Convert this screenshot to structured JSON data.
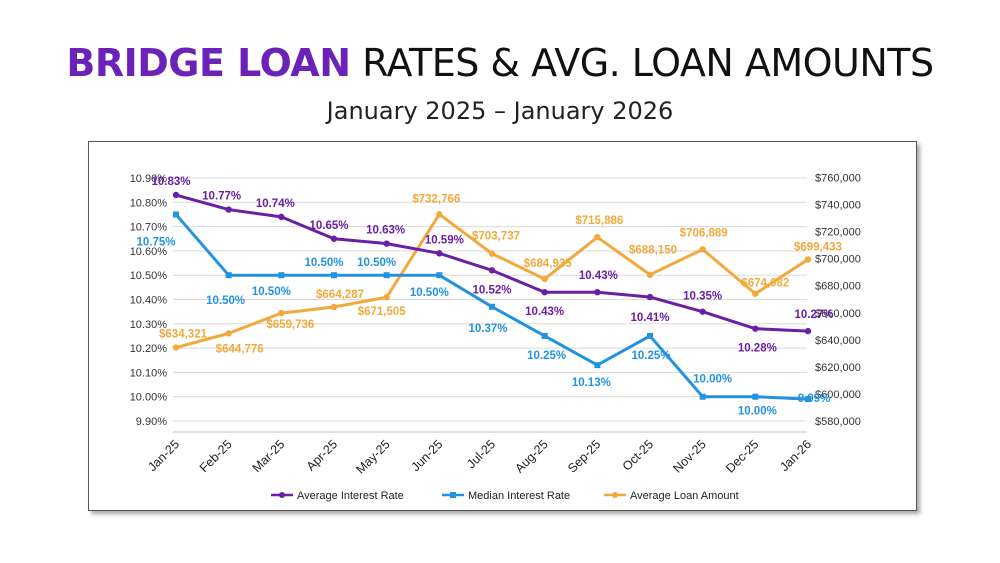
{
  "header": {
    "title_highlight": "BRIDGE LOAN",
    "title_rest": "RATES & AVG. LOAN AMOUNTS",
    "subtitle": "January 2025 – January 2026"
  },
  "colors": {
    "title_highlight": "#6a22b8",
    "average_rate": "#6a1fa6",
    "median_rate": "#2293e0",
    "loan_amount": "#f2a93b",
    "grid": "#d9d9d9"
  },
  "chart_data": {
    "type": "line",
    "categories": [
      "Jan-25",
      "Feb-25",
      "Mar-25",
      "Apr-25",
      "May-25",
      "Jun-25",
      "Jul-25",
      "Aug-25",
      "Sep-25",
      "Oct-25",
      "Nov-25",
      "Dec-25",
      "Jan-26"
    ],
    "grid": true,
    "legend_position": "bottom",
    "y_left": {
      "range": [
        9.9,
        10.9
      ],
      "ticks": [
        "10.90%",
        "10.80%",
        "10.70%",
        "10.60%",
        "10.50%",
        "10.40%",
        "10.30%",
        "10.20%",
        "10.10%",
        "10.00%",
        "9.90%"
      ]
    },
    "y_right": {
      "range": [
        580000,
        760000
      ],
      "ticks": [
        "$760,000",
        "$740,000",
        "$720,000",
        "$700,000",
        "$680,000",
        "$660,000",
        "$640,000",
        "$620,000",
        "$600,000",
        "$580,000"
      ]
    },
    "series": [
      {
        "name": "Average Interest Rate",
        "axis": "left",
        "color": "#6a1fa6",
        "marker": "circle",
        "values": [
          10.83,
          10.77,
          10.74,
          10.65,
          10.63,
          10.59,
          10.52,
          10.43,
          10.43,
          10.41,
          10.35,
          10.28,
          10.27
        ],
        "labels": [
          "10.83%",
          "10.77%",
          "10.74%",
          "10.65%",
          "10.63%",
          "10.59%",
          "10.52%",
          "10.43%",
          "10.43%",
          "10.41%",
          "10.35%",
          "10.28%",
          "10.27%"
        ]
      },
      {
        "name": "Median Interest Rate",
        "axis": "left",
        "color": "#2293e0",
        "marker": "square",
        "values": [
          10.75,
          10.5,
          10.5,
          10.5,
          10.5,
          10.5,
          10.37,
          10.25,
          10.13,
          10.25,
          10.0,
          10.0,
          9.99
        ],
        "labels": [
          "10.75%",
          "10.50%",
          "10.50%",
          "10.50%",
          "10.50%",
          "10.50%",
          "10.37%",
          "10.25%",
          "10.13%",
          "10.25%",
          "10.00%",
          "10.00%",
          "9.99%"
        ]
      },
      {
        "name": "Average Loan Amount",
        "axis": "right",
        "color": "#f2a93b",
        "marker": "circle",
        "values": [
          634321,
          644776,
          659736,
          664287,
          671505,
          732766,
          703737,
          684935,
          715886,
          688150,
          706889,
          674082,
          699433
        ],
        "labels": [
          "$634,321",
          "$644,776",
          "$659,736",
          "$664,287",
          "$671,505",
          "$732,766",
          "$703,737",
          "$684,935",
          "$715,886",
          "$688,150",
          "$706,889",
          "$674,082",
          "$699,433"
        ]
      }
    ]
  }
}
